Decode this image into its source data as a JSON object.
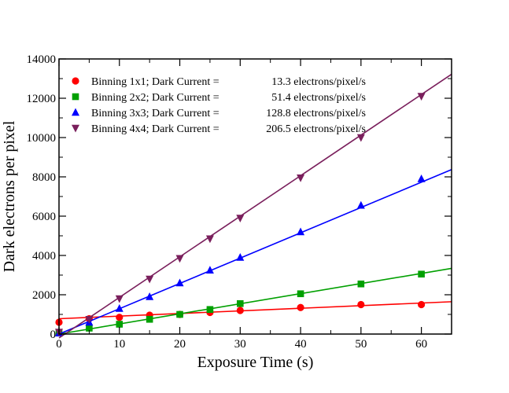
{
  "chart_data": {
    "type": "scatter",
    "title": "",
    "xlabel": "Exposure Time (s)",
    "ylabel": "Dark electrons per pixel",
    "xlim": [
      0,
      65
    ],
    "ylim": [
      0,
      14000
    ],
    "x_ticks": [
      0,
      10,
      20,
      30,
      40,
      50,
      60
    ],
    "y_ticks": [
      0,
      2000,
      4000,
      6000,
      8000,
      10000,
      12000,
      14000
    ],
    "grid": false,
    "legend_position": "top-left",
    "series": [
      {
        "name": "Binning 1x1; Dark Current =",
        "value_text": "13.3 electrons/pixel/s",
        "marker": "circle",
        "color": "#ff0000",
        "fit": {
          "slope": 13.3,
          "intercept": 780
        },
        "points": [
          [
            0,
            600
          ],
          [
            5,
            780
          ],
          [
            10,
            850
          ],
          [
            15,
            960
          ],
          [
            20,
            1000
          ],
          [
            25,
            1100
          ],
          [
            30,
            1200
          ],
          [
            40,
            1350
          ],
          [
            50,
            1500
          ],
          [
            60,
            1500
          ]
        ]
      },
      {
        "name": "Binning 2x2; Dark Current =",
        "value_text": "51.4 electrons/pixel/s",
        "marker": "square",
        "color": "#00a000",
        "fit": {
          "slope": 51.4,
          "intercept": 0
        },
        "points": [
          [
            0,
            50
          ],
          [
            5,
            300
          ],
          [
            10,
            500
          ],
          [
            15,
            750
          ],
          [
            20,
            1000
          ],
          [
            25,
            1250
          ],
          [
            30,
            1550
          ],
          [
            40,
            2050
          ],
          [
            50,
            2550
          ],
          [
            60,
            3050
          ]
        ]
      },
      {
        "name": "Binning 3x3; Dark Current =",
        "value_text": "128.8 electrons/pixel/s",
        "marker": "triangle-up",
        "color": "#0000ff",
        "fit": {
          "slope": 128.8,
          "intercept": 0
        },
        "points": [
          [
            0,
            50
          ],
          [
            5,
            600
          ],
          [
            10,
            1300
          ],
          [
            15,
            1900
          ],
          [
            20,
            2600
          ],
          [
            25,
            3250
          ],
          [
            30,
            3900
          ],
          [
            40,
            5200
          ],
          [
            50,
            6550
          ],
          [
            60,
            7900
          ]
        ]
      },
      {
        "name": "Binning 4x4; Dark Current =",
        "value_text": "206.5 electrons/pixel/s",
        "marker": "triangle-down",
        "color": "#7a1f5c",
        "fit": {
          "slope": 206.5,
          "intercept": -200
        },
        "points": [
          [
            0,
            100
          ],
          [
            5,
            750
          ],
          [
            10,
            1800
          ],
          [
            15,
            2800
          ],
          [
            20,
            3850
          ],
          [
            25,
            4850
          ],
          [
            30,
            5900
          ],
          [
            40,
            7950
          ],
          [
            50,
            10000
          ],
          [
            60,
            12100
          ]
        ]
      }
    ]
  }
}
